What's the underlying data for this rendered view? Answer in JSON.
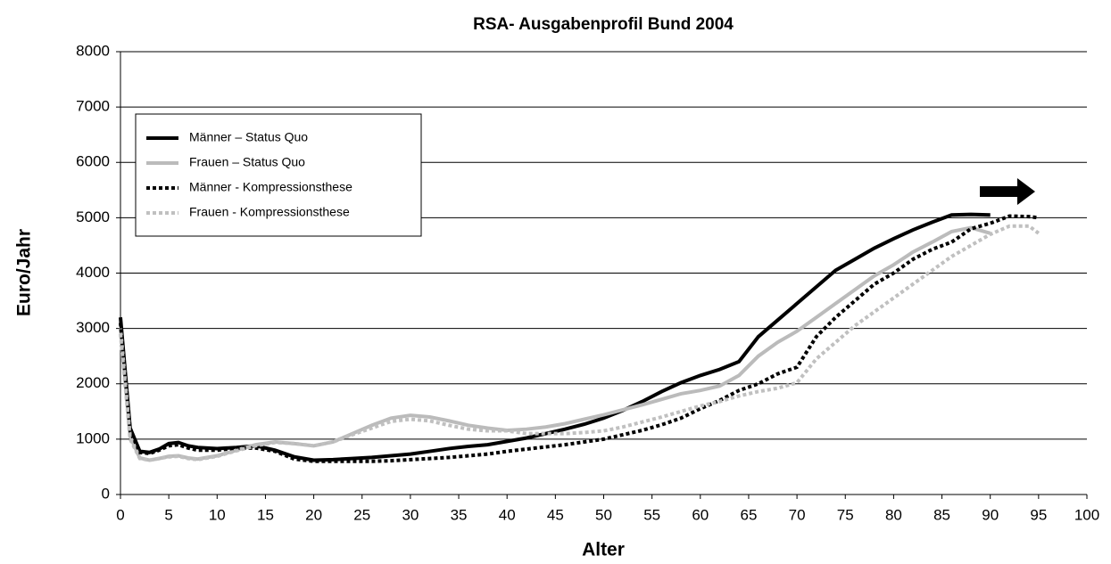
{
  "chart_data": {
    "type": "line",
    "title": "RSA- Ausgabenprofil Bund 2004",
    "x_label": "Alter",
    "y_label": "Euro/Jahr",
    "x": [
      0,
      1,
      2,
      3,
      4,
      5,
      6,
      7,
      8,
      10,
      12,
      14,
      16,
      18,
      20,
      22,
      24,
      26,
      28,
      30,
      32,
      34,
      36,
      38,
      40,
      42,
      44,
      46,
      48,
      50,
      52,
      54,
      56,
      58,
      60,
      62,
      64,
      66,
      68,
      70,
      72,
      74,
      76,
      78,
      80,
      82,
      84,
      86,
      88,
      90,
      92,
      94,
      95
    ],
    "series": [
      {
        "name": "Männer – Status Quo",
        "color": "#000000",
        "line_style": "solid",
        "values": [
          3200,
          1200,
          780,
          760,
          820,
          920,
          940,
          880,
          850,
          830,
          850,
          880,
          800,
          680,
          620,
          630,
          650,
          670,
          700,
          730,
          780,
          830,
          870,
          900,
          960,
          1020,
          1100,
          1180,
          1270,
          1380,
          1520,
          1680,
          1860,
          2020,
          2150,
          2260,
          2400,
          2850,
          3150,
          3450,
          3750,
          4050,
          4250,
          4450,
          4620,
          4780,
          4920,
          5050,
          5060,
          5050,
          null,
          null,
          null
        ]
      },
      {
        "name": "Frauen – Status Quo",
        "color": "#bbbbbb",
        "line_style": "solid",
        "values": [
          3000,
          1050,
          660,
          620,
          650,
          690,
          700,
          660,
          640,
          700,
          800,
          900,
          950,
          920,
          880,
          950,
          1100,
          1250,
          1380,
          1430,
          1400,
          1330,
          1250,
          1200,
          1160,
          1180,
          1220,
          1280,
          1360,
          1440,
          1530,
          1620,
          1720,
          1820,
          1880,
          1960,
          2150,
          2500,
          2750,
          2950,
          3200,
          3450,
          3700,
          3950,
          4150,
          4380,
          4560,
          4750,
          4820,
          4720,
          null,
          null,
          null
        ]
      },
      {
        "name": "Männer - Kompressionsthese",
        "color": "#000000",
        "line_style": "dotted",
        "values": [
          3100,
          1150,
          760,
          740,
          800,
          880,
          900,
          840,
          800,
          800,
          840,
          840,
          780,
          640,
          600,
          600,
          600,
          600,
          610,
          630,
          650,
          670,
          700,
          730,
          780,
          820,
          860,
          900,
          950,
          1000,
          1080,
          1160,
          1260,
          1380,
          1550,
          1700,
          1880,
          2000,
          2180,
          2300,
          2850,
          3200,
          3500,
          3800,
          4000,
          4250,
          4430,
          4560,
          4800,
          4900,
          5030,
          5020,
          5000
        ]
      },
      {
        "name": "Frauen - Kompressionsthese",
        "color": "#c0c0c0",
        "line_style": "dotted",
        "values": [
          2900,
          1000,
          650,
          620,
          650,
          680,
          690,
          650,
          630,
          690,
          790,
          880,
          940,
          920,
          880,
          950,
          1080,
          1200,
          1320,
          1360,
          1330,
          1250,
          1180,
          1150,
          1150,
          1100,
          1100,
          1100,
          1120,
          1150,
          1220,
          1310,
          1400,
          1500,
          1600,
          1680,
          1780,
          1860,
          1920,
          2020,
          2450,
          2750,
          3050,
          3300,
          3550,
          3800,
          4050,
          4300,
          4500,
          4700,
          4850,
          4850,
          4720
        ]
      }
    ],
    "xlim": [
      0,
      100
    ],
    "xticks": [
      0,
      5,
      10,
      15,
      20,
      25,
      30,
      35,
      40,
      45,
      50,
      55,
      60,
      65,
      70,
      75,
      80,
      85,
      90,
      95,
      100
    ],
    "ylim": [
      0,
      8000
    ],
    "yticks": [
      0,
      1000,
      2000,
      3000,
      4000,
      5000,
      6000,
      7000,
      8000
    ],
    "grid": true,
    "legend": "upper left"
  }
}
